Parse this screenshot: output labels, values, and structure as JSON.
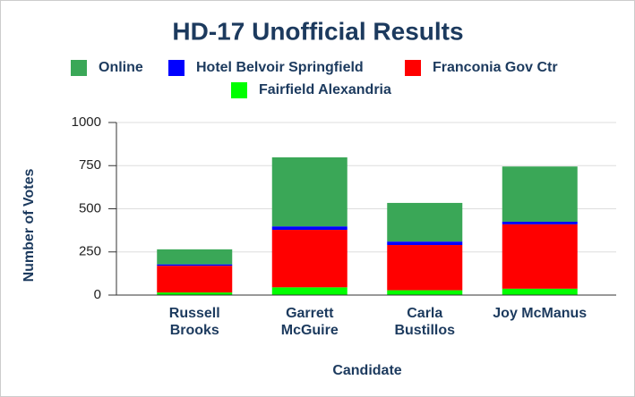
{
  "chart_data": {
    "type": "stacked_bar",
    "title": "HD-17 Unofficial Results",
    "x_label": "Candidate",
    "y_label": "Number of Votes",
    "categories": [
      "Russell Brooks",
      "Garrett McGuire",
      "Carla Bustillos",
      "Joy McManus"
    ],
    "series": [
      {
        "name": "Fairfield Alexandria",
        "color": "#00ff00",
        "values": [
          15,
          45,
          28,
          37
        ]
      },
      {
        "name": "Franconia Gov Ctr",
        "color": "#ff0000",
        "values": [
          155,
          333,
          262,
          373
        ]
      },
      {
        "name": "Hotel Belvoir Springfield",
        "color": "#0000ff",
        "values": [
          8,
          20,
          20,
          15
        ]
      },
      {
        "name": "Online",
        "color": "#3aa757",
        "values": [
          87,
          400,
          224,
          320
        ]
      }
    ],
    "ylim": [
      0,
      1000
    ],
    "yticks": [
      0,
      250,
      500,
      750,
      1000
    ],
    "grid": true
  }
}
